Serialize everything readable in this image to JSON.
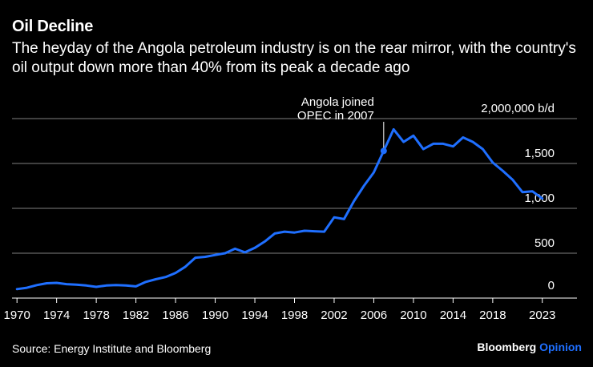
{
  "title": "Oil Decline",
  "subtitle": "The heyday of the Angola petroleum industry is on the rear mirror, with the country's oil output down more than 40% from its peak a decade ago",
  "source": "Source: Energy Institute and Bloomberg",
  "brand": {
    "name": "Bloomberg",
    "suffix": "Opinion"
  },
  "colors": {
    "line": "#1f6fff",
    "grid": "#7f7f7f",
    "background": "#000000",
    "text": "#ffffff"
  },
  "chart_data": {
    "type": "line",
    "title": "Oil Decline",
    "ylabel": "",
    "xlabel": "",
    "unit_label": "2,000,000 b/d",
    "xlim": [
      1969.5,
      2026.5
    ],
    "ylim": [
      0,
      2000000
    ],
    "grid": true,
    "y_ticks": [
      {
        "value": 0,
        "label": "0"
      },
      {
        "value": 500000,
        "label": "500"
      },
      {
        "value": 1000000,
        "label": "1,000"
      },
      {
        "value": 1500000,
        "label": "1,500"
      },
      {
        "value": 2000000,
        "label": "2,000,000 b/d"
      }
    ],
    "x_ticks": [
      1970,
      1974,
      1978,
      1982,
      1986,
      1990,
      1994,
      1998,
      2002,
      2006,
      2010,
      2014,
      2018,
      2023
    ],
    "annotation": {
      "year": 2007,
      "value": 1640000,
      "text": [
        "Angola joined",
        "OPEC in 2007"
      ]
    },
    "series": [
      {
        "x": [
          1970,
          1971,
          1972,
          1973,
          1974,
          1975,
          1976,
          1977,
          1978,
          1979,
          1980,
          1981,
          1982,
          1983,
          1984,
          1985,
          1986,
          1987,
          1988,
          1989,
          1990,
          1991,
          1992,
          1993,
          1994,
          1995,
          1996,
          1997,
          1998,
          1999,
          2000,
          2001,
          2002,
          2003,
          2004,
          2005,
          2006,
          2007,
          2008,
          2009,
          2010,
          2011,
          2012,
          2013,
          2014,
          2015,
          2016,
          2017,
          2018,
          2019,
          2020,
          2021,
          2022,
          2023
        ],
        "values": [
          100000,
          115000,
          145000,
          165000,
          170000,
          155000,
          150000,
          140000,
          125000,
          140000,
          145000,
          140000,
          130000,
          180000,
          210000,
          235000,
          280000,
          350000,
          450000,
          460000,
          480000,
          500000,
          550000,
          510000,
          560000,
          630000,
          720000,
          740000,
          730000,
          750000,
          745000,
          740000,
          900000,
          880000,
          1080000,
          1250000,
          1400000,
          1640000,
          1880000,
          1740000,
          1810000,
          1660000,
          1720000,
          1720000,
          1690000,
          1790000,
          1740000,
          1660000,
          1510000,
          1420000,
          1320000,
          1180000,
          1190000,
          1110000
        ]
      }
    ]
  }
}
